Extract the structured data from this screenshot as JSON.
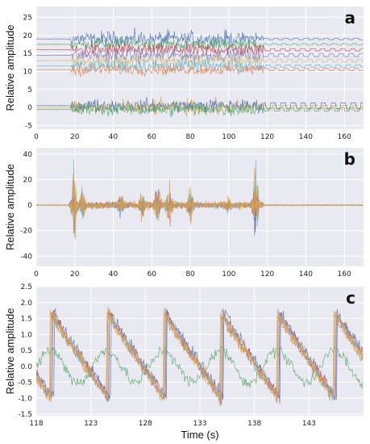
{
  "colors": {
    "panel_bg": "#e9e9f1",
    "grid": "#ffffff",
    "series": [
      "#4c72b0",
      "#55a868",
      "#c44e52",
      "#8172b2",
      "#ccb974",
      "#64b5cd",
      "#dd8452",
      "#e8a33d"
    ]
  },
  "chart_data": [
    {
      "type": "line",
      "panel_label": "a",
      "ylabel": "Relative amplitude",
      "xlabel": "",
      "xlim": [
        0,
        170
      ],
      "ylim": [
        -6,
        28
      ],
      "xticks": [
        0,
        20,
        40,
        60,
        80,
        100,
        120,
        140,
        160
      ],
      "yticks": [
        -5,
        0,
        5,
        10,
        15,
        20,
        25
      ],
      "grid": true,
      "note_series": "multiple offset traces; upper group with baselines near 11-19, lower group centered at 0",
      "series": [
        {
          "offset": 19.0,
          "active": [
            [
              18,
              118,
              3.5
            ]
          ],
          "quiet_periodic": [
            [
              118,
              170,
              0.2
            ]
          ]
        },
        {
          "offset": 17.5,
          "active": [
            [
              18,
              118,
              3.0
            ]
          ],
          "quiet_periodic": [
            [
              118,
              170,
              0.2
            ]
          ]
        },
        {
          "offset": 16.0,
          "active": [
            [
              18,
              118,
              3.0
            ]
          ],
          "quiet_periodic": [
            [
              118,
              170,
              0.3
            ]
          ]
        },
        {
          "offset": 14.5,
          "active": [
            [
              18,
              118,
              3.0
            ]
          ],
          "quiet_periodic": [
            [
              118,
              170,
              0.4
            ]
          ]
        },
        {
          "offset": 13.0,
          "active": [
            [
              18,
              118,
              3.0
            ]
          ],
          "quiet_periodic": [
            [
              118,
              170,
              0.4
            ]
          ]
        },
        {
          "offset": 11.5,
          "active": [
            [
              18,
              118,
              3.0
            ]
          ],
          "quiet_periodic": [
            [
              118,
              170,
              0.3
            ]
          ]
        },
        {
          "offset": 10.5,
          "active": [
            [
              18,
              118,
              2.5
            ]
          ],
          "quiet_periodic": [
            [
              118,
              170,
              0.3
            ]
          ]
        },
        {
          "offset": 0.0,
          "active": [
            [
              18,
              118,
              3.5
            ]
          ],
          "quiet_periodic": [
            [
              118,
              170,
              0.6
            ]
          ]
        },
        {
          "offset": 0.5,
          "active": [
            [
              18,
              118,
              3.0
            ]
          ],
          "quiet_periodic": [
            [
              118,
              170,
              0.8
            ]
          ]
        },
        {
          "offset": -0.5,
          "active": [
            [
              18,
              118,
              3.0
            ]
          ],
          "quiet_periodic": [
            [
              118,
              170,
              0.5
            ]
          ]
        }
      ]
    },
    {
      "type": "line",
      "panel_label": "b",
      "ylabel": "Relative amplitude",
      "xlabel": "",
      "xlim": [
        0,
        170
      ],
      "ylim": [
        -48,
        45
      ],
      "xticks": [
        0,
        20,
        40,
        60,
        80,
        100,
        120,
        140,
        160
      ],
      "yticks": [
        -40,
        -20,
        0,
        20,
        40
      ],
      "grid": true,
      "bursts": [
        {
          "center": 19.5,
          "amplitude": 40
        },
        {
          "center": 24,
          "amplitude": 15
        },
        {
          "center": 44,
          "amplitude": 12
        },
        {
          "center": 55,
          "amplitude": 15
        },
        {
          "center": 63,
          "amplitude": 25
        },
        {
          "center": 69,
          "amplitude": 20
        },
        {
          "center": 80,
          "amplitude": 20
        },
        {
          "center": 100,
          "amplitude": 5
        },
        {
          "center": 114,
          "amplitude": 45
        }
      ]
    },
    {
      "type": "line",
      "panel_label": "c",
      "ylabel": "Relative amplitude",
      "xlabel": "Time (s)",
      "xlim": [
        118,
        148
      ],
      "ylim": [
        -1.55,
        2.5
      ],
      "xticks": [
        118,
        123,
        128,
        133,
        138,
        143
      ],
      "yticks": [
        -1.5,
        -1.0,
        -0.5,
        0.0,
        0.5,
        1.0,
        1.5,
        2.0,
        2.5
      ],
      "ytick_labels": [
        "-1.5",
        "-1.0",
        "-0.5",
        "0.0",
        "0.5",
        "1.0",
        "1.5",
        "2.0",
        "2.5"
      ],
      "grid": true,
      "period_s": 5.2,
      "peak_times": [
        119.6,
        124.6,
        129.5,
        134.4,
        139.3,
        144.4
      ],
      "peak_value": 1.7,
      "trough_value": -1.0
    }
  ]
}
